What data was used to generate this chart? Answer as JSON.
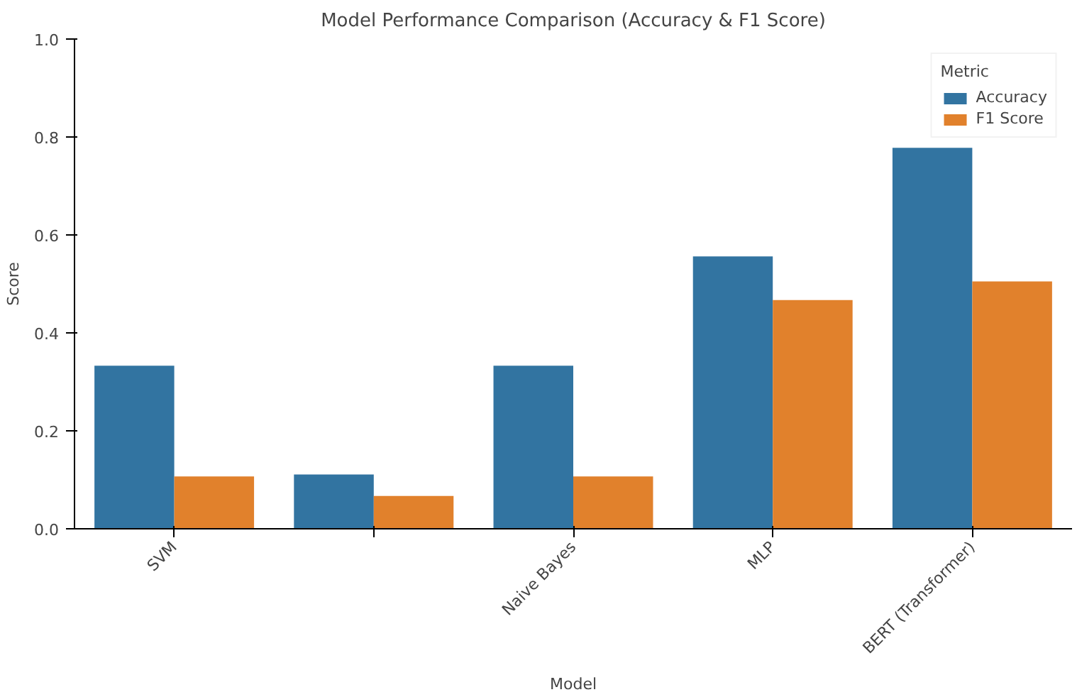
{
  "chart_data": {
    "type": "bar",
    "title": "Model Performance Comparison (Accuracy & F1 Score)",
    "xlabel": "Model",
    "ylabel": "Score",
    "legend_title": "Metric",
    "categories": [
      "SVM",
      null,
      "Naive Bayes",
      "MLP",
      "BERT (Transformer)"
    ],
    "series": [
      {
        "name": "Accuracy",
        "color": "#3274a1",
        "values": [
          0.333,
          0.111,
          0.333,
          0.556,
          0.778
        ]
      },
      {
        "name": "F1 Score",
        "color": "#e1812c",
        "values": [
          0.107,
          0.067,
          0.107,
          0.467,
          0.505
        ]
      }
    ],
    "ylim": [
      0,
      1
    ],
    "yticks": [
      {
        "value": 0,
        "label": "0.0"
      },
      {
        "value": 0.2,
        "label": "0.2"
      },
      {
        "value": 0.4,
        "label": "0.4"
      },
      {
        "value": 0.6,
        "label": "0.6"
      },
      {
        "value": 0.8,
        "label": "0.8"
      },
      {
        "value": 1,
        "label": "1.0"
      }
    ],
    "grid": false,
    "legend": "top right"
  }
}
